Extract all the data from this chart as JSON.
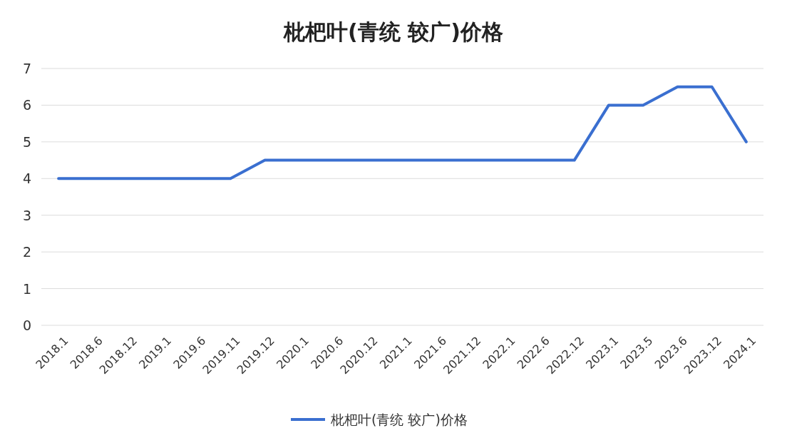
{
  "chart_data": {
    "type": "line",
    "title": "枇杷叶(青统 较广)价格",
    "categories": [
      "2018.1",
      "2018.6",
      "2018.12",
      "2019.1",
      "2019.6",
      "2019.11",
      "2019.12",
      "2020.1",
      "2020.6",
      "2020.12",
      "2021.1",
      "2021.6",
      "2021.12",
      "2022.1",
      "2022.6",
      "2022.12",
      "2023.1",
      "2023.5",
      "2023.6",
      "2023.12",
      "2024.1"
    ],
    "series": [
      {
        "name": "枇杷叶(青统 较广)价格",
        "color": "#3a6fd0",
        "values": [
          4,
          4,
          4,
          4,
          4,
          4,
          4.5,
          4.5,
          4.5,
          4.5,
          4.5,
          4.5,
          4.5,
          4.5,
          4.5,
          4.5,
          6,
          6,
          6.5,
          6.5,
          5
        ]
      }
    ],
    "ylim": [
      0,
      7
    ],
    "yticks": [
      0,
      1,
      2,
      3,
      4,
      5,
      6,
      7
    ],
    "grid": "y",
    "legend": "bottom"
  }
}
